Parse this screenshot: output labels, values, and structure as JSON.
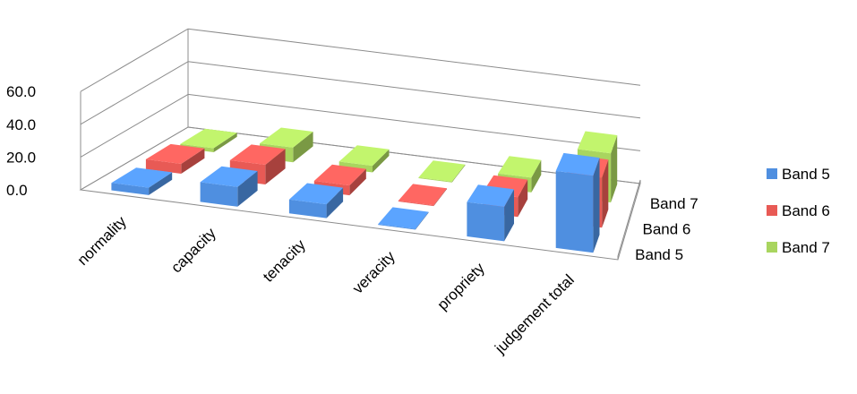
{
  "chart_data": {
    "type": "bar",
    "title": "",
    "xlabel": "",
    "ylabel": "",
    "categories": [
      "normality",
      "capacity",
      "tenacity",
      "veracity",
      "propriety",
      "judgement total"
    ],
    "ylim": [
      0,
      60
    ],
    "yticks": [
      "0.0",
      "20.0",
      "40.0",
      "60.0"
    ],
    "ytick_values": [
      0,
      20,
      40,
      60
    ],
    "grid": true,
    "legend_position": "right",
    "depth_labels": [
      "Band 5",
      "Band 6",
      "Band 7"
    ],
    "series": [
      {
        "name": "Band 5",
        "color": "#4f8fe0",
        "values": [
          4.5,
          12.0,
          8.5,
          0.5,
          21.0,
          47.0
        ]
      },
      {
        "name": "Band 6",
        "color": "#e85a55",
        "values": [
          6.0,
          12.0,
          6.0,
          0.5,
          12.0,
          30.5
        ]
      },
      {
        "name": "Band 7",
        "color": "#a9d55f",
        "values": [
          2.5,
          9.0,
          4.0,
          0.5,
          9.0,
          30.0
        ]
      }
    ]
  }
}
